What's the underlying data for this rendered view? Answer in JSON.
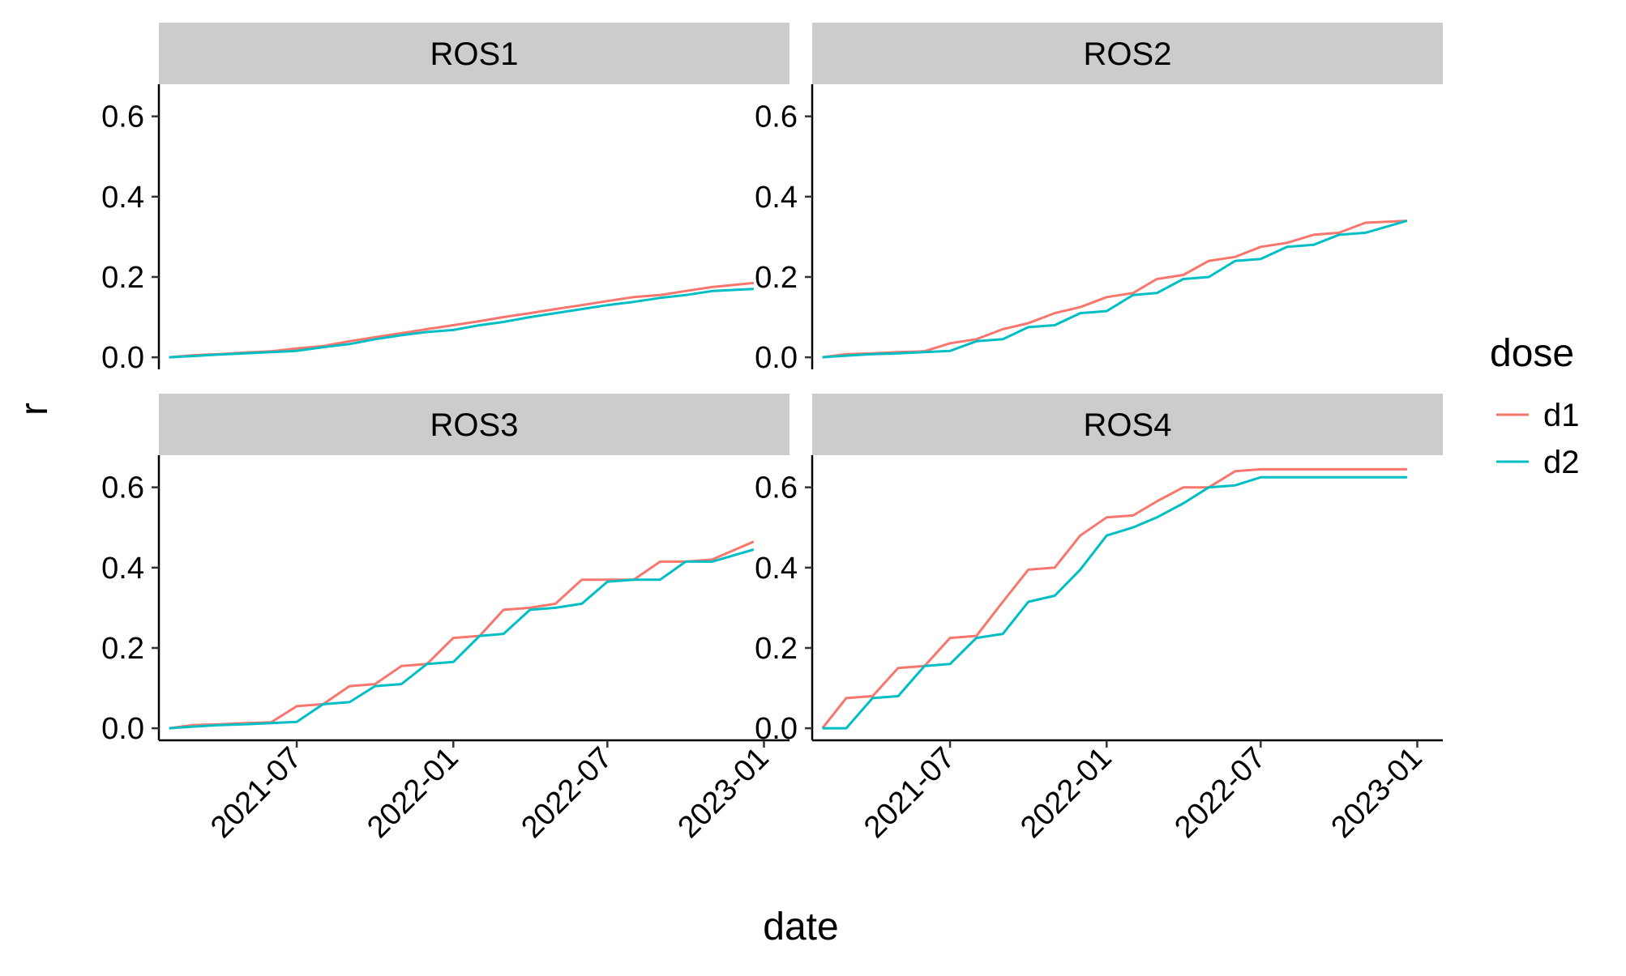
{
  "chart_data": {
    "type": "line",
    "facet_layout": "2x2 grid",
    "xlabel": "date",
    "ylabel": "r",
    "x_tick_labels": [
      "2021-07",
      "2022-01",
      "2022-07",
      "2023-01"
    ],
    "x_ticks": [
      "2021-07-01",
      "2022-01-01",
      "2022-07-01",
      "2023-01-01"
    ],
    "xlim": [
      "2021-01-20",
      "2023-01-31"
    ],
    "y_tick_labels": [
      "0.0",
      "0.2",
      "0.4",
      "0.6"
    ],
    "y_ticks": [
      0,
      0.2,
      0.4,
      0.6
    ],
    "ylim": [
      -0.03,
      0.68
    ],
    "grid": false,
    "legend": {
      "title": "dose",
      "placement": "right",
      "entries": [
        {
          "label": "d1",
          "color": "#F8766D"
        },
        {
          "label": "d2",
          "color": "#00BFC4"
        }
      ]
    },
    "panels": [
      {
        "title": "ROS1",
        "series": [
          {
            "name": "d1",
            "color": "#F8766D",
            "points": [
              [
                "2021-02-01",
                0.0
              ],
              [
                "2021-03-01",
                0.005
              ],
              [
                "2021-04-01",
                0.008
              ],
              [
                "2021-05-01",
                0.012
              ],
              [
                "2021-06-01",
                0.015
              ],
              [
                "2021-07-01",
                0.022
              ],
              [
                "2021-08-01",
                0.028
              ],
              [
                "2021-09-01",
                0.04
              ],
              [
                "2021-10-01",
                0.05
              ],
              [
                "2021-11-01",
                0.06
              ],
              [
                "2021-12-01",
                0.07
              ],
              [
                "2022-01-01",
                0.08
              ],
              [
                "2022-02-01",
                0.09
              ],
              [
                "2022-03-01",
                0.1
              ],
              [
                "2022-04-01",
                0.11
              ],
              [
                "2022-05-01",
                0.12
              ],
              [
                "2022-06-01",
                0.13
              ],
              [
                "2022-07-01",
                0.14
              ],
              [
                "2022-08-01",
                0.15
              ],
              [
                "2022-09-01",
                0.155
              ],
              [
                "2022-10-01",
                0.165
              ],
              [
                "2022-11-01",
                0.175
              ],
              [
                "2022-12-20",
                0.185
              ]
            ]
          },
          {
            "name": "d2",
            "color": "#00BFC4",
            "points": [
              [
                "2021-02-01",
                0.0
              ],
              [
                "2021-03-01",
                0.003
              ],
              [
                "2021-04-01",
                0.007
              ],
              [
                "2021-05-01",
                0.01
              ],
              [
                "2021-06-01",
                0.013
              ],
              [
                "2021-07-01",
                0.016
              ],
              [
                "2021-08-01",
                0.025
              ],
              [
                "2021-09-01",
                0.033
              ],
              [
                "2021-10-01",
                0.045
              ],
              [
                "2021-11-01",
                0.055
              ],
              [
                "2021-12-01",
                0.063
              ],
              [
                "2022-01-01",
                0.068
              ],
              [
                "2022-02-01",
                0.08
              ],
              [
                "2022-03-01",
                0.088
              ],
              [
                "2022-04-01",
                0.1
              ],
              [
                "2022-05-01",
                0.11
              ],
              [
                "2022-06-01",
                0.12
              ],
              [
                "2022-07-01",
                0.13
              ],
              [
                "2022-08-01",
                0.138
              ],
              [
                "2022-09-01",
                0.148
              ],
              [
                "2022-10-01",
                0.155
              ],
              [
                "2022-11-01",
                0.165
              ],
              [
                "2022-12-20",
                0.17
              ]
            ]
          }
        ]
      },
      {
        "title": "ROS2",
        "series": [
          {
            "name": "d1",
            "color": "#F8766D",
            "points": [
              [
                "2021-02-01",
                0.0
              ],
              [
                "2021-03-01",
                0.008
              ],
              [
                "2021-04-01",
                0.01
              ],
              [
                "2021-05-01",
                0.013
              ],
              [
                "2021-06-01",
                0.015
              ],
              [
                "2021-07-01",
                0.035
              ],
              [
                "2021-08-01",
                0.045
              ],
              [
                "2021-09-01",
                0.07
              ],
              [
                "2021-10-01",
                0.085
              ],
              [
                "2021-11-01",
                0.11
              ],
              [
                "2021-12-01",
                0.125
              ],
              [
                "2022-01-01",
                0.15
              ],
              [
                "2022-02-01",
                0.16
              ],
              [
                "2022-03-01",
                0.195
              ],
              [
                "2022-04-01",
                0.205
              ],
              [
                "2022-05-01",
                0.24
              ],
              [
                "2022-06-01",
                0.25
              ],
              [
                "2022-07-01",
                0.275
              ],
              [
                "2022-08-01",
                0.285
              ],
              [
                "2022-09-01",
                0.305
              ],
              [
                "2022-10-01",
                0.31
              ],
              [
                "2022-11-01",
                0.335
              ],
              [
                "2022-12-20",
                0.34
              ]
            ]
          },
          {
            "name": "d2",
            "color": "#00BFC4",
            "points": [
              [
                "2021-02-01",
                0.0
              ],
              [
                "2021-03-01",
                0.004
              ],
              [
                "2021-04-01",
                0.008
              ],
              [
                "2021-05-01",
                0.01
              ],
              [
                "2021-06-01",
                0.013
              ],
              [
                "2021-07-01",
                0.016
              ],
              [
                "2021-08-01",
                0.04
              ],
              [
                "2021-09-01",
                0.045
              ],
              [
                "2021-10-01",
                0.075
              ],
              [
                "2021-11-01",
                0.08
              ],
              [
                "2021-12-01",
                0.11
              ],
              [
                "2022-01-01",
                0.115
              ],
              [
                "2022-02-01",
                0.155
              ],
              [
                "2022-03-01",
                0.16
              ],
              [
                "2022-04-01",
                0.195
              ],
              [
                "2022-05-01",
                0.2
              ],
              [
                "2022-06-01",
                0.24
              ],
              [
                "2022-07-01",
                0.245
              ],
              [
                "2022-08-01",
                0.275
              ],
              [
                "2022-09-01",
                0.28
              ],
              [
                "2022-10-01",
                0.305
              ],
              [
                "2022-11-01",
                0.31
              ],
              [
                "2022-12-20",
                0.34
              ]
            ]
          }
        ]
      },
      {
        "title": "ROS3",
        "series": [
          {
            "name": "d1",
            "color": "#F8766D",
            "points": [
              [
                "2021-02-01",
                0.0
              ],
              [
                "2021-03-01",
                0.008
              ],
              [
                "2021-04-01",
                0.01
              ],
              [
                "2021-05-01",
                0.013
              ],
              [
                "2021-06-01",
                0.015
              ],
              [
                "2021-07-01",
                0.055
              ],
              [
                "2021-08-01",
                0.06
              ],
              [
                "2021-09-01",
                0.105
              ],
              [
                "2021-10-01",
                0.11
              ],
              [
                "2021-11-01",
                0.155
              ],
              [
                "2021-12-01",
                0.16
              ],
              [
                "2022-01-01",
                0.225
              ],
              [
                "2022-02-01",
                0.23
              ],
              [
                "2022-03-01",
                0.295
              ],
              [
                "2022-04-01",
                0.3
              ],
              [
                "2022-05-01",
                0.31
              ],
              [
                "2022-06-01",
                0.37
              ],
              [
                "2022-07-01",
                0.37
              ],
              [
                "2022-08-01",
                0.37
              ],
              [
                "2022-09-01",
                0.415
              ],
              [
                "2022-10-01",
                0.415
              ],
              [
                "2022-11-01",
                0.42
              ],
              [
                "2022-12-20",
                0.465
              ]
            ]
          },
          {
            "name": "d2",
            "color": "#00BFC4",
            "points": [
              [
                "2021-02-01",
                0.0
              ],
              [
                "2021-03-01",
                0.004
              ],
              [
                "2021-04-01",
                0.008
              ],
              [
                "2021-05-01",
                0.01
              ],
              [
                "2021-06-01",
                0.013
              ],
              [
                "2021-07-01",
                0.016
              ],
              [
                "2021-08-01",
                0.06
              ],
              [
                "2021-09-01",
                0.065
              ],
              [
                "2021-10-01",
                0.105
              ],
              [
                "2021-11-01",
                0.11
              ],
              [
                "2021-12-01",
                0.16
              ],
              [
                "2022-01-01",
                0.165
              ],
              [
                "2022-02-01",
                0.23
              ],
              [
                "2022-03-01",
                0.235
              ],
              [
                "2022-04-01",
                0.295
              ],
              [
                "2022-05-01",
                0.3
              ],
              [
                "2022-06-01",
                0.31
              ],
              [
                "2022-07-01",
                0.365
              ],
              [
                "2022-08-01",
                0.37
              ],
              [
                "2022-09-01",
                0.37
              ],
              [
                "2022-10-01",
                0.415
              ],
              [
                "2022-11-01",
                0.415
              ],
              [
                "2022-12-20",
                0.445
              ]
            ]
          }
        ]
      },
      {
        "title": "ROS4",
        "series": [
          {
            "name": "d1",
            "color": "#F8766D",
            "points": [
              [
                "2021-02-01",
                0.0
              ],
              [
                "2021-03-01",
                0.075
              ],
              [
                "2021-04-01",
                0.08
              ],
              [
                "2021-05-01",
                0.15
              ],
              [
                "2021-06-01",
                0.155
              ],
              [
                "2021-07-01",
                0.225
              ],
              [
                "2021-08-01",
                0.23
              ],
              [
                "2021-09-01",
                0.315
              ],
              [
                "2021-10-01",
                0.395
              ],
              [
                "2021-11-01",
                0.4
              ],
              [
                "2021-12-01",
                0.48
              ],
              [
                "2022-01-01",
                0.525
              ],
              [
                "2022-02-01",
                0.53
              ],
              [
                "2022-03-01",
                0.565
              ],
              [
                "2022-04-01",
                0.6
              ],
              [
                "2022-05-01",
                0.6
              ],
              [
                "2022-06-01",
                0.64
              ],
              [
                "2022-07-01",
                0.645
              ],
              [
                "2022-08-01",
                0.645
              ],
              [
                "2022-09-01",
                0.645
              ],
              [
                "2022-10-01",
                0.645
              ],
              [
                "2022-11-01",
                0.645
              ],
              [
                "2022-12-20",
                0.645
              ]
            ]
          },
          {
            "name": "d2",
            "color": "#00BFC4",
            "points": [
              [
                "2021-02-01",
                0.0
              ],
              [
                "2021-03-01",
                0.0
              ],
              [
                "2021-04-01",
                0.075
              ],
              [
                "2021-05-01",
                0.08
              ],
              [
                "2021-06-01",
                0.155
              ],
              [
                "2021-07-01",
                0.16
              ],
              [
                "2021-08-01",
                0.225
              ],
              [
                "2021-09-01",
                0.235
              ],
              [
                "2021-10-01",
                0.315
              ],
              [
                "2021-11-01",
                0.33
              ],
              [
                "2021-12-01",
                0.395
              ],
              [
                "2022-01-01",
                0.48
              ],
              [
                "2022-02-01",
                0.5
              ],
              [
                "2022-03-01",
                0.525
              ],
              [
                "2022-04-01",
                0.56
              ],
              [
                "2022-05-01",
                0.6
              ],
              [
                "2022-06-01",
                0.605
              ],
              [
                "2022-07-01",
                0.625
              ],
              [
                "2022-08-01",
                0.625
              ],
              [
                "2022-09-01",
                0.625
              ],
              [
                "2022-10-01",
                0.625
              ],
              [
                "2022-11-01",
                0.625
              ],
              [
                "2022-12-20",
                0.625
              ]
            ]
          }
        ]
      }
    ]
  }
}
